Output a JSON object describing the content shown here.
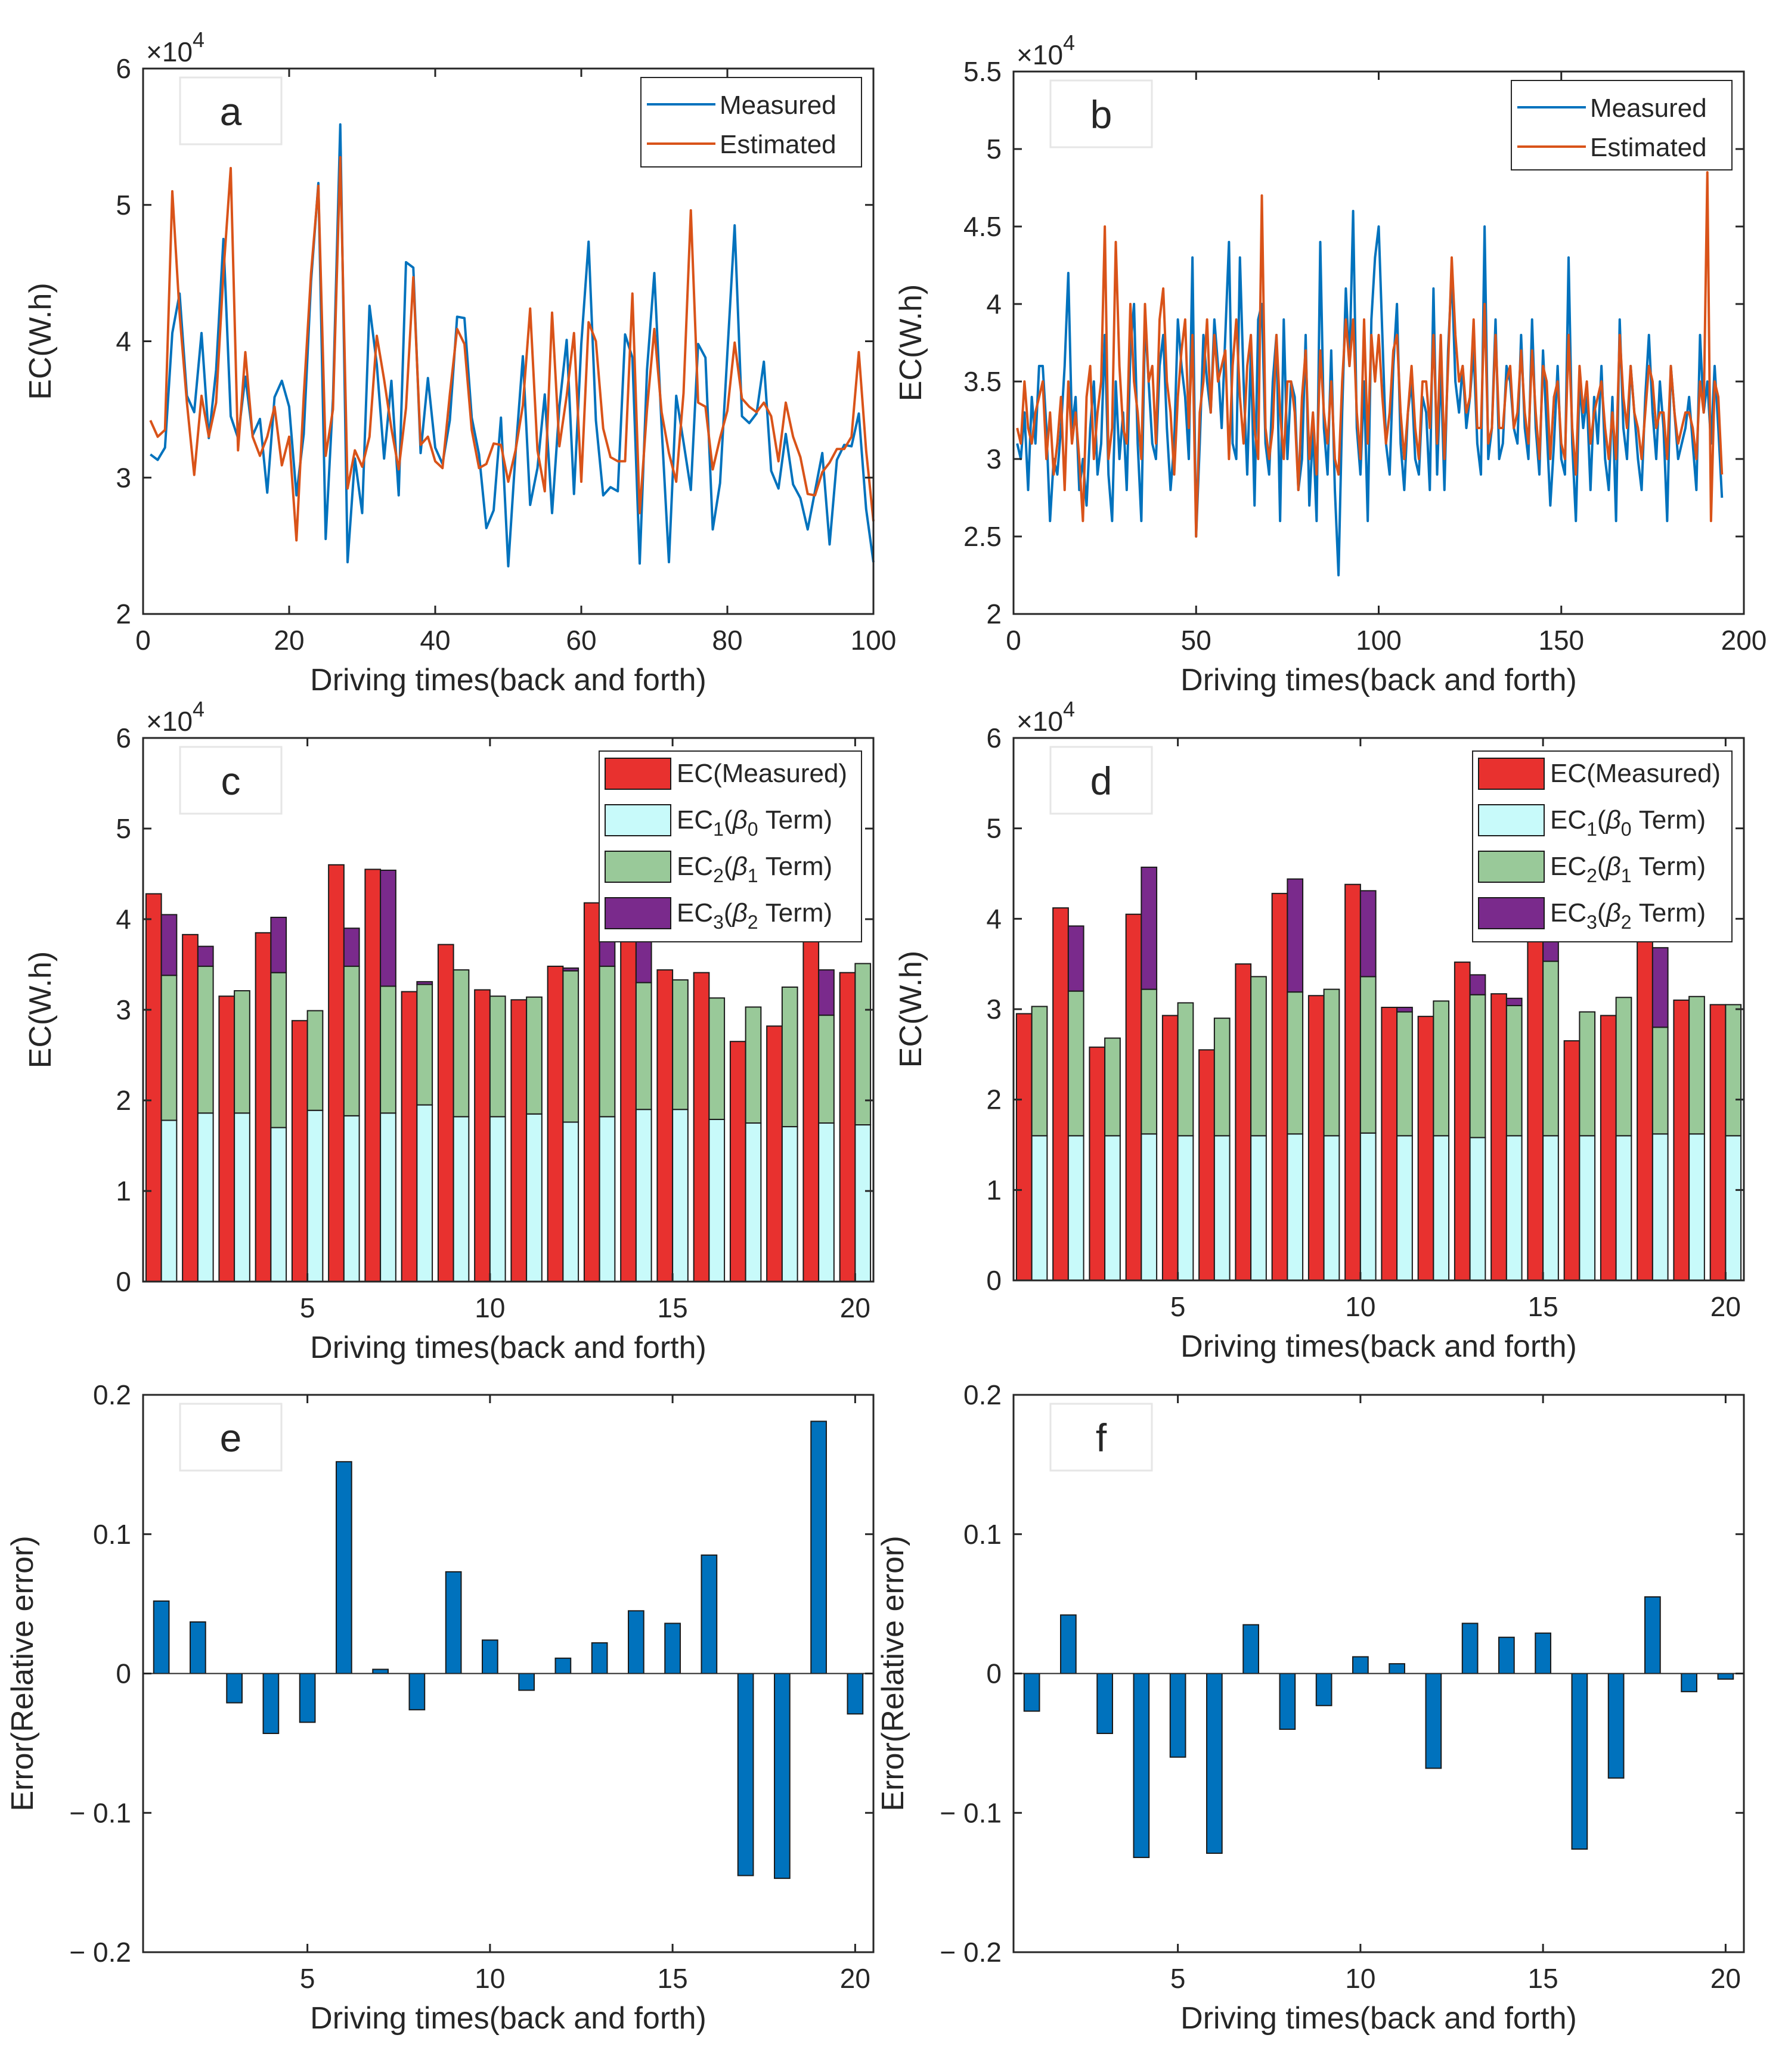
{
  "chart_data": [
    {
      "panel": "a",
      "type": "line",
      "xlabel": "Driving times(back and forth)",
      "ylabel": "EC(W.h)",
      "xlim": [
        0,
        100
      ],
      "ylim": [
        2,
        6
      ],
      "xticks": [
        "0",
        "20",
        "40",
        "60",
        "80",
        "100"
      ],
      "yticks": [
        "2",
        "3",
        "4",
        "5",
        "6"
      ],
      "multiplier": "×10",
      "multiplier_exp": "4",
      "legend_position": "top-right",
      "series": [
        {
          "name": "Measured",
          "color": "#0072BD",
          "values": [
            3.17,
            3.13,
            3.22,
            4.06,
            4.35,
            3.6,
            3.48,
            4.06,
            3.29,
            3.79,
            4.75,
            3.45,
            3.29,
            3.74,
            3.31,
            3.43,
            2.89,
            3.59,
            3.71,
            3.52,
            2.87,
            3.32,
            4.44,
            5.16,
            2.55,
            3.58,
            5.59,
            2.38,
            3.14,
            2.74,
            4.26,
            3.83,
            3.14,
            3.71,
            2.87,
            4.58,
            4.54,
            3.18,
            3.73,
            3.22,
            3.1,
            3.42,
            4.18,
            4.17,
            3.44,
            3.17,
            2.63,
            2.76,
            3.44,
            2.35,
            3.18,
            3.89,
            2.8,
            3.07,
            3.61,
            2.74,
            3.52,
            4.01,
            2.88,
            3.98,
            4.73,
            3.42,
            2.87,
            2.93,
            2.9,
            4.05,
            3.88,
            2.37,
            3.79,
            4.5,
            3.37,
            2.38,
            3.6,
            3.26,
            2.91,
            3.98,
            3.88,
            2.62,
            2.96,
            3.91,
            4.85,
            3.45,
            3.4,
            3.47,
            3.85,
            3.05,
            2.92,
            3.32,
            2.95,
            2.85,
            2.62,
            2.9,
            3.18,
            2.51,
            3.13,
            3.24,
            3.23,
            3.47,
            2.77,
            2.38
          ]
        },
        {
          "name": "Estimated",
          "color": "#D95319",
          "values": [
            3.42,
            3.3,
            3.35,
            5.1,
            4.2,
            3.55,
            3.02,
            3.6,
            3.3,
            3.55,
            4.5,
            5.27,
            3.2,
            3.92,
            3.3,
            3.16,
            3.3,
            3.52,
            3.09,
            3.3,
            2.54,
            3.6,
            4.5,
            5.14,
            3.16,
            3.5,
            5.35,
            2.92,
            3.2,
            3.08,
            3.3,
            4.04,
            3.72,
            3.36,
            3.06,
            3.51,
            4.47,
            3.24,
            3.3,
            3.12,
            3.07,
            3.61,
            4.09,
            3.98,
            3.35,
            3.07,
            3.1,
            3.25,
            3.24,
            2.97,
            3.2,
            3.53,
            4.24,
            3.2,
            2.9,
            4.21,
            3.23,
            3.6,
            4.06,
            2.97,
            4.14,
            4.0,
            3.36,
            3.15,
            3.12,
            3.12,
            4.35,
            2.74,
            3.5,
            4.09,
            3.48,
            3.18,
            2.97,
            3.62,
            4.96,
            3.55,
            3.52,
            3.06,
            3.29,
            3.49,
            3.99,
            3.58,
            3.52,
            3.48,
            3.55,
            3.45,
            3.12,
            3.55,
            3.3,
            3.15,
            2.88,
            2.87,
            3.04,
            3.11,
            3.21,
            3.21,
            3.3,
            3.92,
            3.2,
            2.68
          ]
        }
      ]
    },
    {
      "panel": "b",
      "type": "line",
      "xlabel": "Driving times(back and forth)",
      "ylabel": "EC(W.h)",
      "xlim": [
        0,
        200
      ],
      "ylim": [
        2,
        5.5
      ],
      "xticks": [
        "0",
        "50",
        "100",
        "150",
        "200"
      ],
      "yticks": [
        "2",
        "2.5",
        "3",
        "3.5",
        "4",
        "4.5",
        "5",
        "5.5"
      ],
      "multiplier": "×10",
      "multiplier_exp": "4",
      "legend_position": "top-right",
      "series": [
        {
          "name": "Measured",
          "color": "#0072BD",
          "values": [
            3.1,
            3.0,
            3.3,
            2.8,
            3.4,
            3.1,
            3.6,
            3.6,
            3.2,
            2.6,
            3.0,
            2.9,
            3.2,
            3.6,
            4.2,
            3.2,
            3.4,
            2.8,
            3.0,
            2.7,
            3.2,
            3.5,
            2.9,
            3.1,
            3.8,
            2.9,
            2.6,
            3.5,
            3.0,
            3.3,
            2.8,
            3.7,
            4.0,
            3.1,
            2.6,
            3.9,
            3.5,
            3.1,
            3.0,
            3.6,
            3.8,
            3.2,
            2.8,
            3.1,
            3.9,
            3.6,
            3.4,
            3.0,
            4.3,
            2.5,
            3.1,
            3.8,
            3.5,
            3.3,
            3.9,
            3.6,
            3.2,
            3.8,
            4.4,
            3.1,
            3.0,
            4.3,
            3.5,
            2.9,
            3.7,
            2.7,
            3.9,
            4.0,
            3.1,
            2.9,
            3.5,
            3.8,
            2.6,
            3.9,
            3.0,
            3.5,
            3.4,
            2.8,
            3.0,
            3.8,
            2.7,
            3.2,
            2.6,
            4.4,
            3.2,
            2.9,
            3.7,
            2.8,
            2.25,
            3.3,
            4.1,
            3.6,
            4.6,
            3.2,
            2.9,
            3.5,
            2.6,
            3.9,
            4.3,
            4.5,
            3.8,
            3.1,
            2.9,
            3.6,
            4.0,
            3.1,
            2.8,
            3.3,
            3.5,
            3.0,
            2.9,
            3.4,
            3.3,
            2.8,
            4.1,
            2.9,
            3.6,
            2.8,
            3.7,
            4.2,
            3.5,
            3.3,
            3.6,
            3.2,
            3.4,
            3.7,
            3.1,
            2.9,
            4.5,
            3.0,
            3.2,
            3.9,
            3.0,
            3.1,
            3.6,
            3.5,
            3.2,
            3.1,
            3.8,
            3.2,
            3.0,
            3.9,
            3.2,
            2.9,
            3.7,
            3.2,
            2.7,
            3.1,
            3.6,
            3.0,
            2.9,
            4.3,
            3.1,
            2.6,
            3.5,
            3.2,
            3.4,
            2.8,
            3.4,
            3.1,
            3.6,
            3.0,
            2.8,
            3.4,
            2.6,
            3.9,
            3.2,
            3.0,
            3.6,
            3.3,
            3.0,
            2.8,
            3.4,
            3.8,
            3.3,
            3.0,
            3.5,
            3.2,
            2.6,
            3.6,
            3.3,
            3.0,
            3.1,
            3.2,
            3.4,
            3.1,
            2.8,
            3.8,
            3.3,
            3.5,
            3.1,
            3.6,
            3.2,
            2.75
          ]
        },
        {
          "name": "Estimated",
          "color": "#D95319",
          "values": [
            3.2,
            3.1,
            3.5,
            3.2,
            3.1,
            3.3,
            3.4,
            3.5,
            3.0,
            3.3,
            2.9,
            3.1,
            3.4,
            2.8,
            3.5,
            3.1,
            3.3,
            3.0,
            2.6,
            3.4,
            3.6,
            3.0,
            3.3,
            3.5,
            4.5,
            3.0,
            3.2,
            4.4,
            3.6,
            3.2,
            3.1,
            4.0,
            3.5,
            3.3,
            3.0,
            4.0,
            3.5,
            3.6,
            3.1,
            3.9,
            4.1,
            3.5,
            3.3,
            2.9,
            3.4,
            3.7,
            3.9,
            3.2,
            3.8,
            2.5,
            3.3,
            3.5,
            3.9,
            3.3,
            3.8,
            3.5,
            3.6,
            3.7,
            3.0,
            3.6,
            3.9,
            3.4,
            3.1,
            3.6,
            3.8,
            3.2,
            3.0,
            4.7,
            3.2,
            3.0,
            3.2,
            3.8,
            3.3,
            3.0,
            3.5,
            3.5,
            3.3,
            2.8,
            3.4,
            3.7,
            3.0,
            3.3,
            2.9,
            3.7,
            3.3,
            3.1,
            3.5,
            3.0,
            2.9,
            3.5,
            3.9,
            3.6,
            3.9,
            3.3,
            3.0,
            3.9,
            3.1,
            3.8,
            3.5,
            3.8,
            3.4,
            3.1,
            3.3,
            3.7,
            3.8,
            3.3,
            3.0,
            3.3,
            3.6,
            3.2,
            3.0,
            3.5,
            3.5,
            3.2,
            3.8,
            3.1,
            3.8,
            3.0,
            3.6,
            4.3,
            3.8,
            3.5,
            3.6,
            3.3,
            3.4,
            3.9,
            3.2,
            3.2,
            4.0,
            3.1,
            3.2,
            3.8,
            3.2,
            3.2,
            3.5,
            3.6,
            3.2,
            3.3,
            3.7,
            3.3,
            3.1,
            3.7,
            3.3,
            3.0,
            3.6,
            3.5,
            3.0,
            3.4,
            3.5,
            3.1,
            3.0,
            3.8,
            3.2,
            2.9,
            3.6,
            3.3,
            3.5,
            3.1,
            3.3,
            3.4,
            3.5,
            3.2,
            3.0,
            3.3,
            3.0,
            3.8,
            3.4,
            3.2,
            3.6,
            3.3,
            3.2,
            3.0,
            3.3,
            3.6,
            3.5,
            3.2,
            3.3,
            3.3,
            3.0,
            3.6,
            3.3,
            3.1,
            3.2,
            3.3,
            3.3,
            3.2,
            3.0,
            3.5,
            3.3,
            4.85,
            2.6,
            3.5,
            3.4,
            2.9
          ]
        }
      ]
    },
    {
      "panel": "c",
      "type": "bar",
      "xlabel": "Driving times(back and forth)",
      "ylabel": "EC(W.h)",
      "xlim": [
        0.5,
        20.5
      ],
      "ylim": [
        0,
        6
      ],
      "xticks": [
        "5",
        "10",
        "15",
        "20"
      ],
      "yticks": [
        "0",
        "1",
        "2",
        "3",
        "4",
        "5",
        "6"
      ],
      "multiplier": "×10",
      "multiplier_exp": "4",
      "legend_position": "top-right",
      "legend": [
        {
          "text": "EC(Measured)",
          "color": "#E8312F"
        },
        {
          "text": "EC1(β0 Term)",
          "base": "EC",
          "sub": "1",
          "paren_open": "(",
          "greek": "β",
          "greek_sub": "0",
          "tail": " Term)",
          "color": "#C8FAFA"
        },
        {
          "text": "EC2(β1 Term)",
          "base": "EC",
          "sub": "2",
          "paren_open": "(",
          "greek": "β",
          "greek_sub": "1",
          "tail": " Term)",
          "color": "#99C999"
        },
        {
          "text": "EC3(β2 Term)",
          "base": "EC",
          "sub": "3",
          "paren_open": "(",
          "greek": "β",
          "greek_sub": "2",
          "tail": " Term)",
          "color": "#7A2A8C"
        }
      ],
      "measured": [
        4.28,
        3.83,
        3.15,
        3.85,
        2.88,
        4.6,
        4.55,
        3.2,
        3.72,
        3.22,
        3.11,
        3.48,
        4.18,
        4.17,
        3.44,
        3.41,
        2.65,
        2.82,
        3.92,
        3.41
      ],
      "beta0": [
        1.78,
        1.86,
        1.86,
        1.7,
        1.89,
        1.83,
        1.86,
        1.95,
        1.82,
        1.82,
        1.85,
        1.76,
        1.82,
        1.9,
        1.9,
        1.79,
        1.75,
        1.71,
        1.75,
        1.73
      ],
      "beta1": [
        1.6,
        1.62,
        1.35,
        1.71,
        1.1,
        1.65,
        1.4,
        1.33,
        1.62,
        1.33,
        1.29,
        1.67,
        1.66,
        1.4,
        1.43,
        1.34,
        1.28,
        1.54,
        1.19,
        1.78
      ],
      "beta2": [
        0.67,
        0.22,
        0,
        0.61,
        0,
        0.42,
        1.28,
        0.03,
        0,
        0,
        0,
        0.03,
        0.6,
        0.55,
        0,
        0,
        0,
        0,
        0.5,
        0
      ]
    },
    {
      "panel": "d",
      "type": "bar",
      "xlabel": "Driving times(back and forth)",
      "ylabel": "EC(W.h)",
      "xlim": [
        0.5,
        20.5
      ],
      "ylim": [
        0,
        6
      ],
      "xticks": [
        "5",
        "10",
        "15",
        "20"
      ],
      "yticks": [
        "0",
        "1",
        "2",
        "3",
        "4",
        "5",
        "6"
      ],
      "multiplier": "×10",
      "multiplier_exp": "4",
      "legend_position": "top-right",
      "legend": [
        {
          "text": "EC(Measured)",
          "color": "#E8312F"
        },
        {
          "text": "EC1(β0 Term)",
          "base": "EC",
          "sub": "1",
          "paren_open": "(",
          "greek": "β",
          "greek_sub": "0",
          "tail": " Term)",
          "color": "#C8FAFA"
        },
        {
          "text": "EC2(β1 Term)",
          "base": "EC",
          "sub": "2",
          "paren_open": "(",
          "greek": "β",
          "greek_sub": "1",
          "tail": " Term)",
          "color": "#99C999"
        },
        {
          "text": "EC3(β2 Term)",
          "base": "EC",
          "sub": "3",
          "paren_open": "(",
          "greek": "β",
          "greek_sub": "2",
          "tail": " Term)",
          "color": "#7A2A8C"
        }
      ],
      "measured": [
        2.95,
        4.12,
        2.58,
        4.05,
        2.93,
        2.55,
        3.5,
        4.28,
        3.15,
        4.38,
        3.02,
        2.92,
        3.52,
        3.17,
        4.05,
        2.65,
        2.93,
        4.1,
        3.1,
        3.05
      ],
      "beta0": [
        1.6,
        1.6,
        1.6,
        1.62,
        1.6,
        1.6,
        1.6,
        1.62,
        1.6,
        1.63,
        1.6,
        1.6,
        1.58,
        1.6,
        1.6,
        1.6,
        1.6,
        1.62,
        1.62,
        1.6
      ],
      "beta1": [
        1.43,
        1.6,
        1.08,
        1.6,
        1.47,
        1.3,
        1.76,
        1.57,
        1.62,
        1.73,
        1.37,
        1.49,
        1.58,
        1.44,
        1.93,
        1.37,
        1.53,
        1.18,
        1.52,
        1.45
      ],
      "beta2": [
        0,
        0.72,
        0,
        1.35,
        0,
        0,
        0,
        1.25,
        0,
        0.95,
        0.05,
        0,
        0.22,
        0.08,
        0.3,
        0,
        0,
        0.88,
        0,
        0
      ]
    },
    {
      "panel": "e",
      "type": "bar",
      "xlabel": "Driving times(back and forth)",
      "ylabel": "Error(Relative error)",
      "xlim": [
        0.5,
        20.5
      ],
      "ylim": [
        -0.2,
        0.2
      ],
      "xticks": [
        "5",
        "10",
        "15",
        "20"
      ],
      "yticks": [
        "− 0.2",
        "− 0.1",
        "0",
        "0.1",
        "0.2"
      ],
      "color": "#0072BD",
      "values": [
        0.052,
        0.037,
        -0.021,
        -0.043,
        -0.035,
        0.152,
        0.003,
        -0.026,
        0.073,
        0.024,
        -0.012,
        0.011,
        0.022,
        0.045,
        0.036,
        0.085,
        -0.145,
        -0.147,
        0.181,
        -0.029
      ]
    },
    {
      "panel": "f",
      "type": "bar",
      "xlabel": "Driving times(back and forth)",
      "ylabel": "Error(Relative error)",
      "xlim": [
        0.5,
        20.5
      ],
      "ylim": [
        -0.2,
        0.2
      ],
      "xticks": [
        "5",
        "10",
        "15",
        "20"
      ],
      "yticks": [
        "− 0.2",
        "− 0.1",
        "0",
        "0.1",
        "0.2"
      ],
      "color": "#0072BD",
      "values": [
        -0.027,
        0.042,
        -0.043,
        -0.132,
        -0.06,
        -0.129,
        0.035,
        -0.04,
        -0.023,
        0.012,
        0.007,
        -0.068,
        0.036,
        0.026,
        0.029,
        -0.126,
        -0.075,
        0.055,
        -0.013,
        -0.004
      ]
    }
  ]
}
